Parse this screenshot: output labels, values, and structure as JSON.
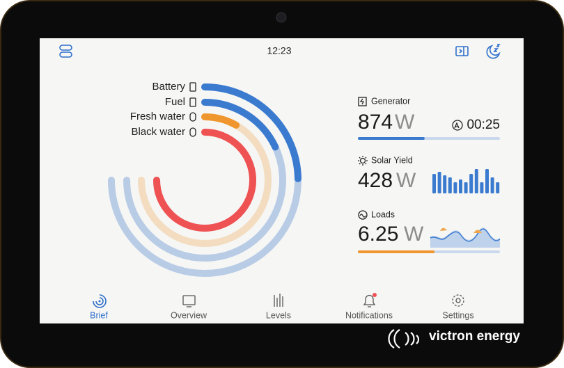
{
  "status_bar": {
    "time": "12:23"
  },
  "gauges": [
    {
      "label": "Battery",
      "level": 33,
      "color": "#3b7bcf",
      "track_color": "#b9cce6"
    },
    {
      "label": "Fuel",
      "level": 24,
      "color": "#3b7bcf",
      "track_color": "#b9cce6"
    },
    {
      "label": "Fresh water",
      "level": 11,
      "color": "#f0962e",
      "track_color": "#f3dcc0"
    },
    {
      "label": "Black water",
      "level": 100,
      "color": "#ee5253",
      "track_color": "#f6c9c9"
    }
  ],
  "tiles": {
    "generator": {
      "title": "Generator",
      "value": "874",
      "unit": "W",
      "timer": "00:25",
      "progress": 47,
      "color": "#3b7bcf"
    },
    "solar": {
      "title": "Solar Yield",
      "value": "428",
      "unit": "W",
      "history": [
        28,
        31,
        26,
        23,
        16,
        20,
        16,
        28,
        35,
        16,
        35,
        23,
        16
      ],
      "history_max": 40,
      "color": "#3b7bcf"
    },
    "loads": {
      "title": "Loads",
      "value": "6.25",
      "unit": "W",
      "progress": 54,
      "color": "#f0962e"
    }
  },
  "nav": [
    {
      "label": "Brief"
    },
    {
      "label": "Overview"
    },
    {
      "label": "Levels"
    },
    {
      "label": "Notifications"
    },
    {
      "label": "Settings"
    }
  ],
  "brand": "victron energy"
}
